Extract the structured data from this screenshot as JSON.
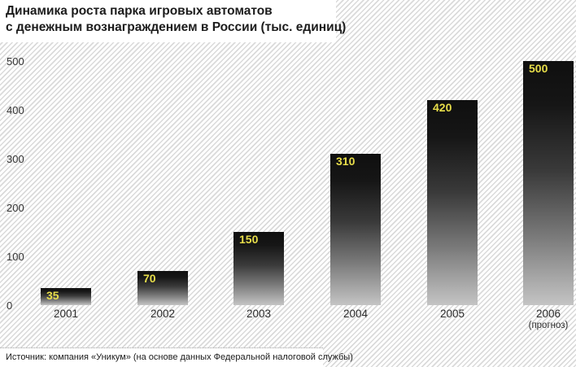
{
  "header": {
    "title_line1": "Динамика роста парка игровых автоматов",
    "title_line2": "с денежным вознаграждением в России (тыс. единиц)"
  },
  "chart_data": {
    "type": "bar",
    "title": "Динамика роста парка игровых автоматов с денежным вознаграждением в России (тыс. единиц)",
    "categories": [
      "2001",
      "2002",
      "2003",
      "2004",
      "2005",
      "2006"
    ],
    "values": [
      35,
      70,
      150,
      310,
      420,
      500
    ],
    "forecast_note": "(прогноз)",
    "forecast_category": "2006",
    "units": "тыс. единиц",
    "xlabel": "",
    "ylabel": "",
    "ylim": [
      0,
      500
    ],
    "yticks": [
      0,
      100,
      200,
      300,
      400,
      500
    ],
    "grid": false,
    "legend_position": "none",
    "colors": {
      "bar_gradient_top": "#0f0f0f",
      "bar_gradient_bottom": "#c4c4c4",
      "value_label": "#e8de4a",
      "hatch_line": "#dadada",
      "background": "#ffffff",
      "axis_text": "#333333"
    }
  },
  "footer": {
    "source": "Источник: компания «Уникум» (на основе данных Федеральной налоговой службы)"
  }
}
